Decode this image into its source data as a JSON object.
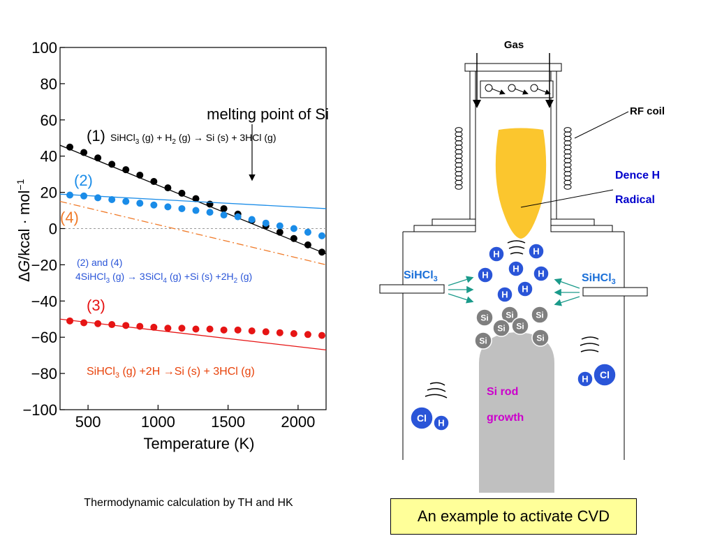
{
  "chart_data": {
    "type": "scatter",
    "xlabel": "Temperature (K)",
    "ylabel_prefix": "∆G",
    "ylabel_rest": "/kcal · mol",
    "ylabel_sup": "−1",
    "xlim": [
      300,
      2200
    ],
    "ylim": [
      -100,
      100
    ],
    "xticks": [
      500,
      1000,
      1500,
      2000
    ],
    "yticks": [
      100,
      80,
      60,
      40,
      20,
      0,
      -20,
      -40,
      -60,
      -80,
      -100
    ],
    "ytick_labels": [
      "100",
      "80",
      "60",
      "40",
      "20",
      "0",
      "−20",
      "−40",
      "−60",
      "−80",
      "−100"
    ],
    "grid": false,
    "annotation": "melting point of Si",
    "annotation_x": 1680,
    "series": [
      {
        "name": "(1)",
        "color": "#000000",
        "line": {
          "x": [
            300,
            2200
          ],
          "y": [
            46,
            -14
          ]
        },
        "x": [
          370,
          470,
          570,
          670,
          770,
          870,
          970,
          1070,
          1170,
          1270,
          1370,
          1470,
          1570,
          1670,
          1770,
          1870,
          1970,
          2070,
          2170
        ],
        "y": [
          45,
          42,
          39,
          35.5,
          32.5,
          29.5,
          26,
          22.5,
          19.5,
          16.5,
          13.5,
          11,
          8,
          4.5,
          1.5,
          -2,
          -5.5,
          -9,
          -13
        ]
      },
      {
        "name": "(2)",
        "color": "#1a8ce8",
        "line": {
          "x": [
            300,
            2200
          ],
          "y": [
            19,
            11
          ]
        },
        "x": [
          370,
          470,
          570,
          670,
          770,
          870,
          970,
          1070,
          1170,
          1270,
          1370,
          1470,
          1570,
          1670,
          1770,
          1870,
          1970,
          2070,
          2170
        ],
        "y": [
          18.5,
          18,
          17,
          16,
          15,
          14,
          13,
          12,
          11,
          10,
          9,
          7.5,
          6.5,
          5,
          3,
          1.5,
          0,
          -2,
          -4
        ]
      },
      {
        "name": "(4)",
        "color": "#f07a28",
        "line": {
          "x": [
            300,
            2200
          ],
          "y": [
            15,
            -20
          ]
        },
        "dashed": true
      },
      {
        "name": "(3)",
        "color": "#e61414",
        "line": {
          "x": [
            300,
            2200
          ],
          "y": [
            -50,
            -67
          ]
        },
        "x": [
          370,
          470,
          570,
          670,
          770,
          870,
          970,
          1070,
          1170,
          1270,
          1370,
          1470,
          1570,
          1670,
          1770,
          1870,
          1970,
          2070,
          2170
        ],
        "y": [
          -51,
          -52,
          -52.5,
          -53,
          -53.5,
          -54,
          -54.5,
          -55,
          -55,
          -55.5,
          -55.5,
          -56,
          -56,
          -56.5,
          -57,
          -57.5,
          -58,
          -58.5,
          -59
        ]
      }
    ]
  },
  "labels": {
    "one": "(1)",
    "two": "(2)",
    "three": "(3)",
    "four": "(4)",
    "eq1": {
      "a": "SiHCl",
      "b": "3",
      "c": " (g) + H",
      "d": "2",
      "e": " (g) → Si (s) + 3HCl (g)"
    },
    "eq24_title": "(2) and (4)",
    "eq24": {
      "a": "4SiHCl",
      "b": "3",
      "c": " (g) → 3SiCl",
      "d": "4",
      "e": " (g) +Si (s) +2H",
      "f": "2",
      "g": " (g)"
    },
    "eq3": {
      "a": "SiHCl",
      "b": "3",
      "c": " (g) +2H →Si (s) + 3HCl (g)"
    }
  },
  "caption": "Thermodynamic calculation by TH and HK",
  "diagram": {
    "gas": "Gas",
    "rf_coil": "RF coil",
    "dense_h_1": "Dence H",
    "dense_h_2": "Radical",
    "sihcl3_left": {
      "a": "SiHCl",
      "b": "3"
    },
    "sihcl3_right": {
      "a": "SiHCl",
      "b": "3"
    },
    "si_rod_1": "Si rod",
    "si_rod_2": "growth",
    "h": "H",
    "si": "Si",
    "cl": "Cl",
    "box_label": "An example to activate CVD",
    "colors": {
      "flame": "#fbc62e",
      "atom_h": "#2a55d8",
      "atom_si": "#7f7f7f",
      "rod": "#c0c0c0",
      "arrow": "#1a9a8a",
      "blue_text": "#0000cc",
      "magenta_text": "#cc00cc"
    }
  }
}
